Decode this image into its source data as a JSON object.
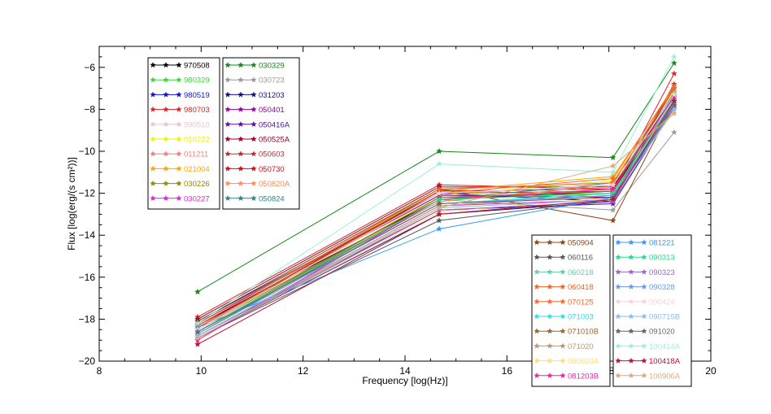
{
  "chart_data": {
    "type": "line",
    "title": "",
    "xlabel": "Frequency [log(Hz)]",
    "ylabel": "Flux [log(erg/(s cm²))]",
    "xlim": [
      8,
      20
    ],
    "ylim": [
      -20,
      -5
    ],
    "xticks": [
      8,
      10,
      12,
      14,
      16,
      18,
      20
    ],
    "yticks": [
      -20,
      -18,
      -16,
      -14,
      -12,
      -10,
      -8,
      -6
    ],
    "xtick_labels": [
      "8",
      "10",
      "12",
      "14",
      "16",
      "18",
      "20"
    ],
    "ytick_labels": [
      "−20",
      "−18",
      "−16",
      "−14",
      "−12",
      "−10",
      "−8",
      "−6"
    ],
    "x": [
      9.93,
      14.67,
      18.08,
      19.28
    ],
    "grid": false,
    "marker": "star",
    "series": [
      {
        "name": "970508",
        "color": "#000000",
        "values": [
          -18.3,
          -12.3,
          -11.9,
          -7.3
        ]
      },
      {
        "name": "980329",
        "color": "#33dd33",
        "values": [
          -18.5,
          -11.8,
          -12.2,
          -6.9
        ]
      },
      {
        "name": "980519",
        "color": "#1111dd",
        "values": [
          -18.1,
          -12.0,
          -12.4,
          -7.6
        ]
      },
      {
        "name": "980703",
        "color": "#dd2222",
        "values": [
          -17.9,
          -11.6,
          -11.8,
          -6.3
        ]
      },
      {
        "name": "990510",
        "color": "#f0c0cc",
        "values": [
          -18.6,
          -12.5,
          -12.0,
          -7.8
        ]
      },
      {
        "name": "010222",
        "color": "#f0f000",
        "values": [
          -18.7,
          -12.1,
          -11.4,
          -7.1
        ]
      },
      {
        "name": "011211",
        "color": "#f08080",
        "values": [
          -18.4,
          -12.4,
          -11.6,
          -7.4
        ]
      },
      {
        "name": "021004",
        "color": "#ffa500",
        "values": [
          -18.2,
          -11.9,
          -11.2,
          -7.0
        ]
      },
      {
        "name": "030226",
        "color": "#8b8b00",
        "values": [
          -18.5,
          -12.2,
          -12.0,
          -7.5
        ]
      },
      {
        "name": "030227",
        "color": "#dd22dd",
        "values": [
          -18.8,
          -12.6,
          -12.3,
          -7.9
        ]
      },
      {
        "name": "030329",
        "color": "#118811",
        "values": [
          -16.7,
          -10.0,
          -10.3,
          -5.8
        ]
      },
      {
        "name": "030723",
        "color": "#999999",
        "values": [
          -18.6,
          -12.3,
          -12.8,
          -9.1
        ]
      },
      {
        "name": "031203",
        "color": "#111188",
        "values": [
          -18.9,
          -13.0,
          -12.4,
          -7.7
        ]
      },
      {
        "name": "050401",
        "color": "#990099",
        "values": [
          -18.3,
          -12.1,
          -12.2,
          -7.2
        ]
      },
      {
        "name": "050416A",
        "color": "#551199",
        "values": [
          -18.8,
          -12.8,
          -12.5,
          -7.9
        ]
      },
      {
        "name": "050525A",
        "color": "#990022",
        "values": [
          -18.0,
          -11.7,
          -11.7,
          -7.3
        ]
      },
      {
        "name": "050603",
        "color": "#aa3333",
        "values": [
          -18.2,
          -12.0,
          -11.9,
          -6.8
        ]
      },
      {
        "name": "050730",
        "color": "#cc1111",
        "values": [
          -18.4,
          -11.9,
          -11.8,
          -7.0
        ]
      },
      {
        "name": "050820A",
        "color": "#ff8855",
        "values": [
          -18.6,
          -12.4,
          -11.6,
          -7.6
        ]
      },
      {
        "name": "050824",
        "color": "#228888",
        "values": [
          -18.7,
          -12.3,
          -11.5,
          -7.8
        ]
      },
      {
        "name": "050904",
        "color": "#8b4513",
        "values": [
          -18.1,
          -11.8,
          -13.3,
          -7.7
        ]
      },
      {
        "name": "060116",
        "color": "#555555",
        "values": [
          -18.9,
          -13.3,
          -12.3,
          -8.0
        ]
      },
      {
        "name": "060218",
        "color": "#66ccaa",
        "values": [
          -18.5,
          -12.0,
          -11.6,
          -7.2
        ]
      },
      {
        "name": "060418",
        "color": "#ee6622",
        "values": [
          -18.3,
          -11.8,
          -11.5,
          -7.0
        ]
      },
      {
        "name": "070125",
        "color": "#ff6633",
        "values": [
          -18.4,
          -12.0,
          -11.3,
          -6.9
        ]
      },
      {
        "name": "071003",
        "color": "#33dddd",
        "values": [
          -18.7,
          -12.5,
          -12.0,
          -7.5
        ]
      },
      {
        "name": "071010B",
        "color": "#996633",
        "values": [
          -18.6,
          -12.2,
          -11.9,
          -7.6
        ]
      },
      {
        "name": "071020",
        "color": "#bb9966",
        "values": [
          -18.8,
          -12.6,
          -12.1,
          -7.8
        ]
      },
      {
        "name": "080603A",
        "color": "#ffdd77",
        "values": [
          -18.9,
          -12.9,
          -12.2,
          -8.1
        ]
      },
      {
        "name": "081203B",
        "color": "#ee22aa",
        "values": [
          -19.0,
          -12.3,
          -11.8,
          -7.4
        ]
      },
      {
        "name": "081221",
        "color": "#3399ff",
        "values": [
          -18.4,
          -13.7,
          -12.2,
          -7.9
        ]
      },
      {
        "name": "090313",
        "color": "#22dd88",
        "values": [
          -18.6,
          -12.3,
          -12.0,
          -7.6
        ]
      },
      {
        "name": "090323",
        "color": "#9966cc",
        "values": [
          -18.9,
          -12.8,
          -12.4,
          -7.9
        ]
      },
      {
        "name": "090328",
        "color": "#6699ee",
        "values": [
          -18.7,
          -12.5,
          -12.1,
          -7.7
        ]
      },
      {
        "name": "090424",
        "color": "#f8d0dd",
        "values": [
          -18.5,
          -12.0,
          -11.6,
          -7.3
        ]
      },
      {
        "name": "090715B",
        "color": "#88bbee",
        "values": [
          -18.8,
          -12.7,
          -12.3,
          -8.0
        ]
      },
      {
        "name": "091020",
        "color": "#666666",
        "values": [
          -18.6,
          -12.5,
          -12.2,
          -7.8
        ]
      },
      {
        "name": "100414A",
        "color": "#99eedd",
        "values": [
          -18.2,
          -10.6,
          -11.0,
          -5.5
        ]
      },
      {
        "name": "100418A",
        "color": "#bb1133",
        "values": [
          -19.2,
          -13.0,
          -12.3,
          -7.6
        ]
      },
      {
        "name": "100906A",
        "color": "#ddaa77",
        "values": [
          -18.9,
          -12.7,
          -10.7,
          -8.2
        ]
      }
    ],
    "legend_groups": [
      {
        "position": "top-left",
        "columns": [
          [
            "970508",
            "980329",
            "980519",
            "980703",
            "990510",
            "010222",
            "011211",
            "021004",
            "030226",
            "030227"
          ],
          [
            "030329",
            "030723",
            "031203",
            "050401",
            "050416A",
            "050525A",
            "050603",
            "050730",
            "050820A",
            "050824"
          ]
        ]
      },
      {
        "position": "bottom-right",
        "columns": [
          [
            "050904",
            "060116",
            "060218",
            "060418",
            "070125",
            "071003",
            "071010B",
            "071020",
            "080603A",
            "081203B"
          ],
          [
            "081221",
            "090313",
            "090323",
            "090328",
            "090424",
            "090715B",
            "091020",
            "100414A",
            "100418A",
            "100906A"
          ]
        ]
      }
    ]
  }
}
